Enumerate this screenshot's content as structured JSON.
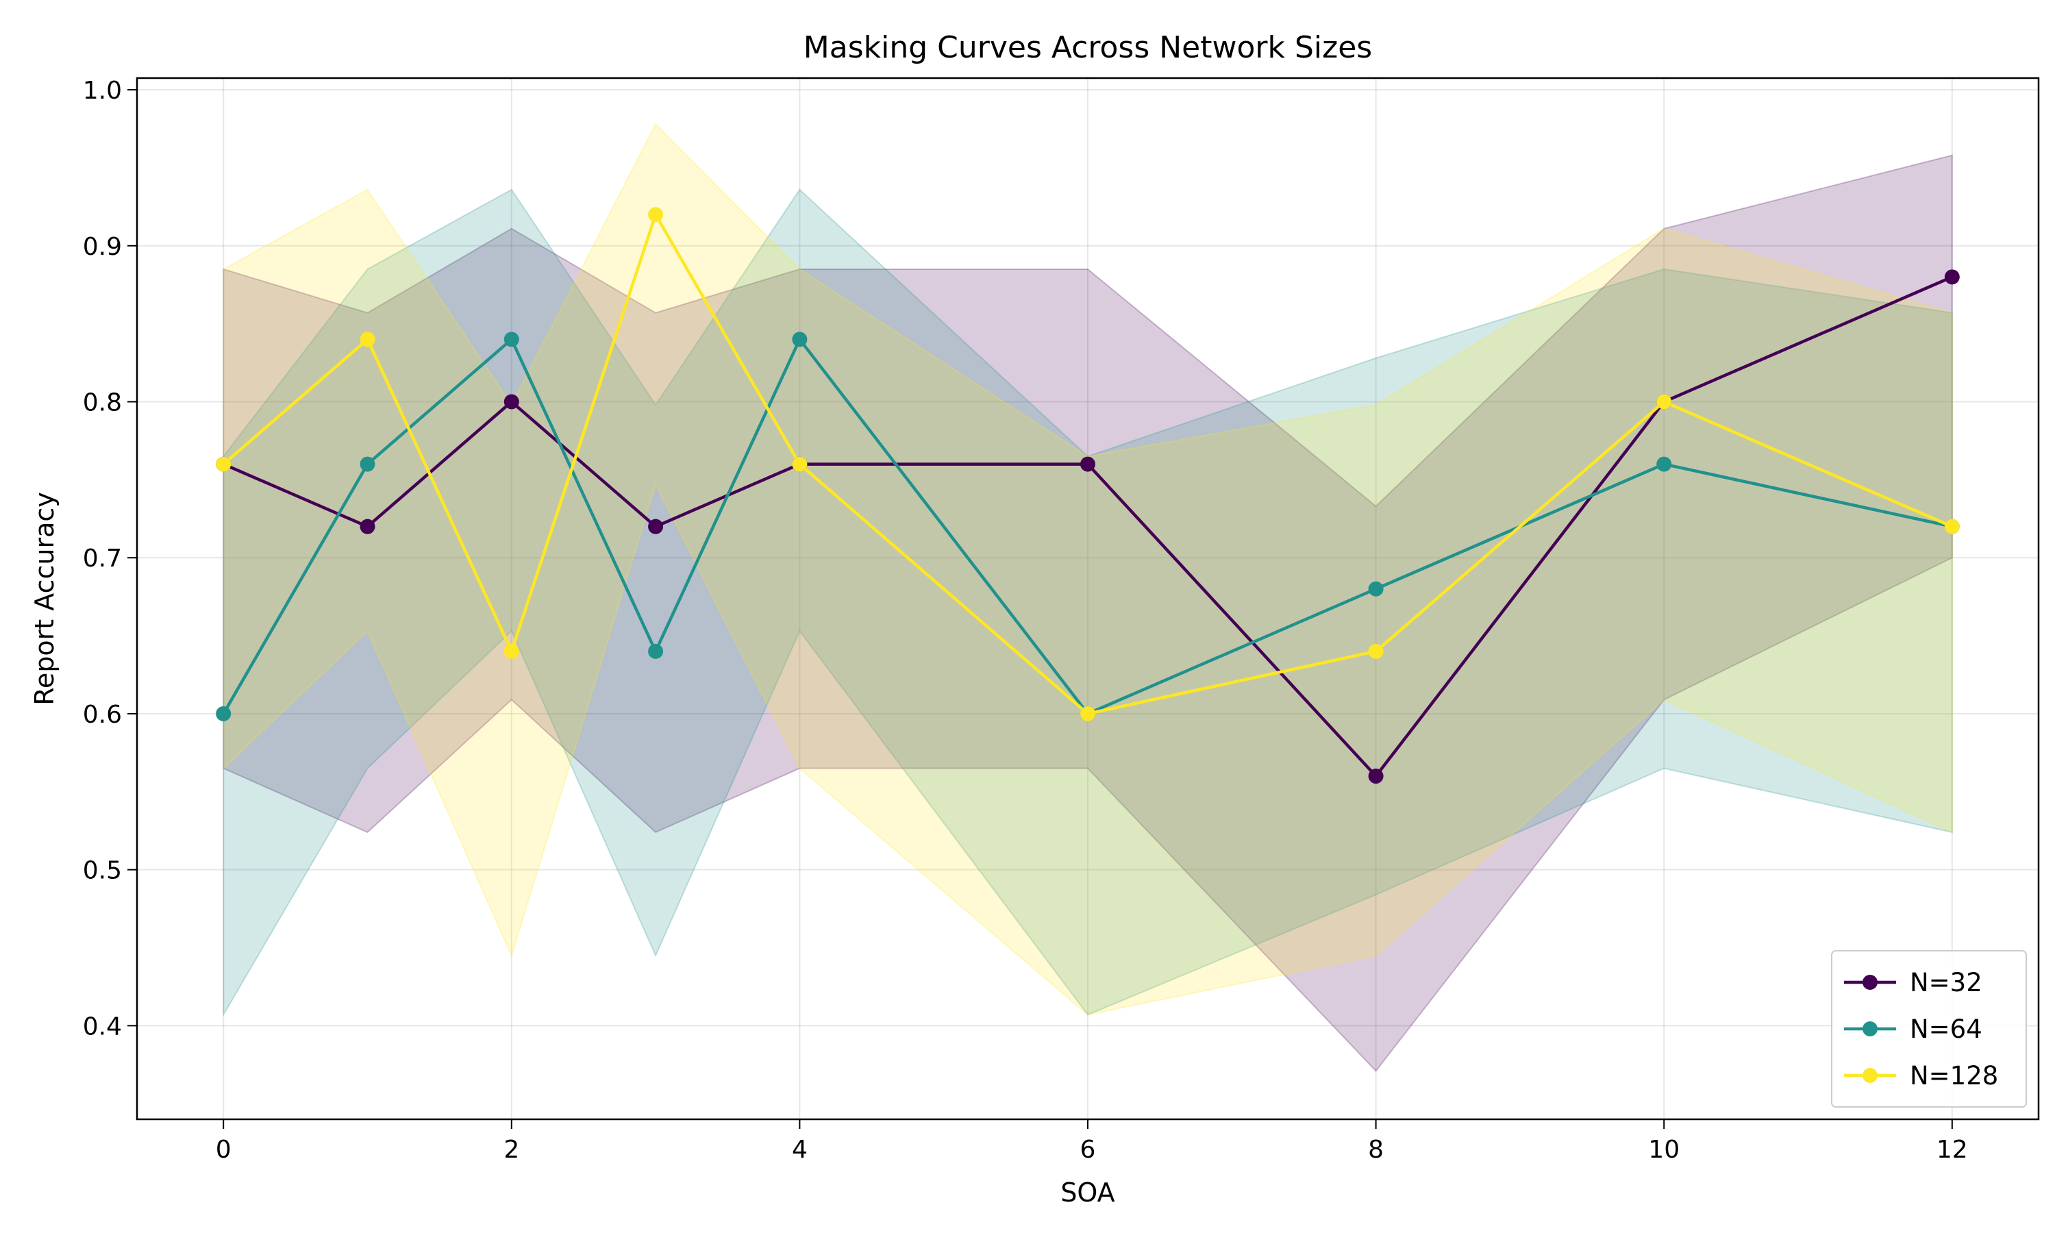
{
  "chart_data": {
    "type": "line",
    "title": "Masking Curves Across Network Sizes",
    "xlabel": "SOA",
    "ylabel": "Report Accuracy",
    "xlim": [
      -0.6,
      12.6
    ],
    "ylim": [
      0.34,
      1.0075
    ],
    "xticks": [
      0,
      2,
      4,
      6,
      8,
      10,
      12
    ],
    "yticks": [
      0.4,
      0.5,
      0.6,
      0.7,
      0.8,
      0.9,
      1.0
    ],
    "xtick_labels": [
      "0",
      "2",
      "4",
      "6",
      "8",
      "10",
      "12"
    ],
    "ytick_labels": [
      "0.4",
      "0.5",
      "0.6",
      "0.7",
      "0.8",
      "0.9",
      "1.0"
    ],
    "grid": true,
    "legend_position": "lower-right",
    "x": [
      0,
      1,
      2,
      3,
      4,
      6,
      8,
      10,
      12
    ],
    "series": [
      {
        "name": "N=32",
        "color": "#440154",
        "values": [
          0.76,
          0.72,
          0.8,
          0.72,
          0.76,
          0.76,
          0.56,
          0.8,
          0.88
        ],
        "lower": [
          0.565,
          0.524,
          0.609,
          0.524,
          0.565,
          0.565,
          0.371,
          0.609,
          0.7
        ],
        "upper": [
          0.885,
          0.857,
          0.911,
          0.857,
          0.885,
          0.885,
          0.733,
          0.911,
          0.958
        ]
      },
      {
        "name": "N=64",
        "color": "#21918c",
        "values": [
          0.6,
          0.76,
          0.84,
          0.64,
          0.84,
          0.6,
          0.68,
          0.76,
          0.72
        ],
        "lower": [
          0.407,
          0.565,
          0.653,
          0.445,
          0.653,
          0.407,
          0.484,
          0.565,
          0.524
        ],
        "upper": [
          0.765,
          0.885,
          0.936,
          0.798,
          0.936,
          0.765,
          0.828,
          0.885,
          0.857
        ]
      },
      {
        "name": "N=128",
        "color": "#fde725",
        "values": [
          0.76,
          0.84,
          0.64,
          0.92,
          0.76,
          0.6,
          0.64,
          0.8,
          0.72
        ],
        "lower": [
          0.565,
          0.653,
          0.445,
          0.747,
          0.565,
          0.407,
          0.445,
          0.609,
          0.524
        ],
        "upper": [
          0.885,
          0.936,
          0.798,
          0.978,
          0.885,
          0.765,
          0.798,
          0.911,
          0.857
        ]
      }
    ]
  }
}
